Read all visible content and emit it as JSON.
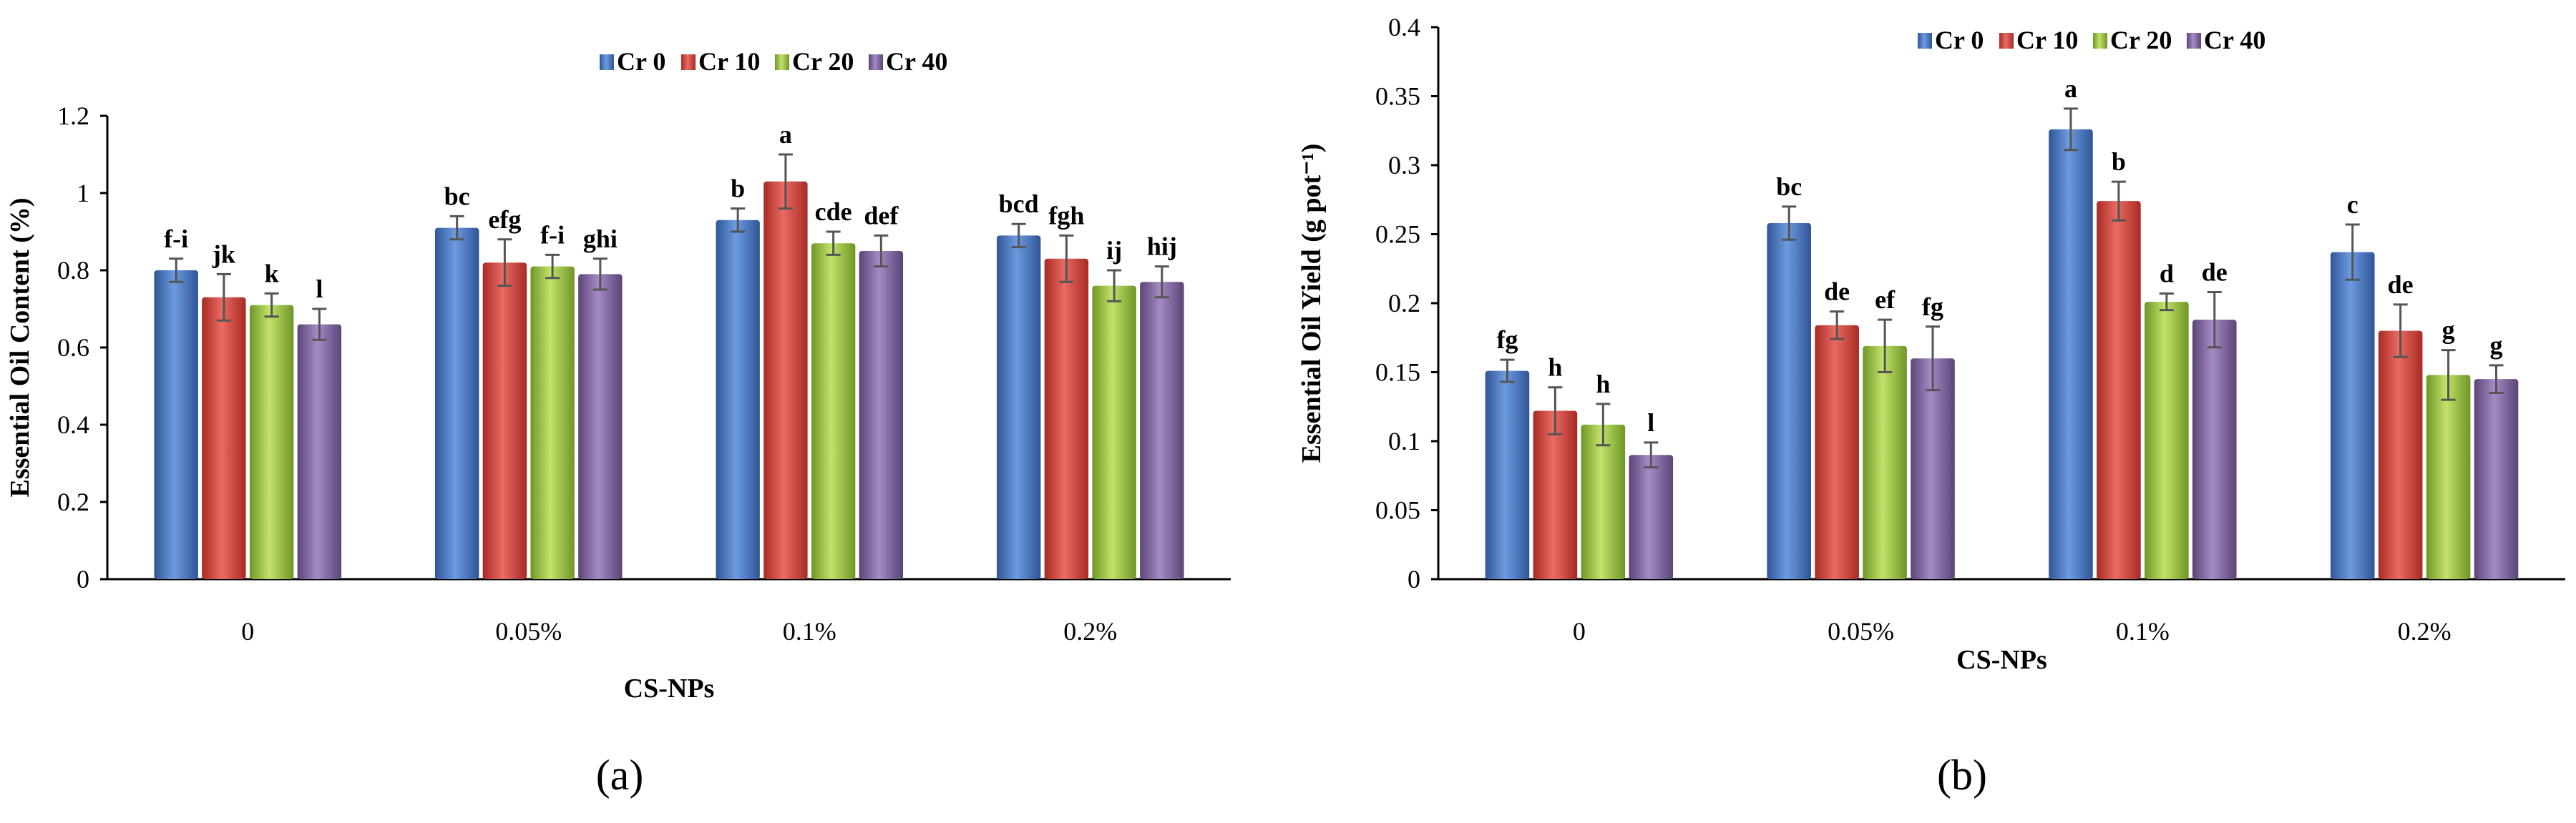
{
  "chart_data": [
    {
      "type": "bar",
      "panel_label": "(a)",
      "xlabel": "CS-NPs",
      "ylabel": "Essential Oil Content (%)",
      "ylim": [
        0,
        1.2
      ],
      "yticks": [
        "0",
        "0.2",
        "0.4",
        "0.6",
        "0.8",
        "1",
        "1.2"
      ],
      "categories": [
        "0",
        "0.05%",
        "0.1%",
        "0.2%"
      ],
      "legend_position": "top-center",
      "series": [
        {
          "name": "Cr 0",
          "color": "#4472C4",
          "values": [
            0.8,
            0.91,
            0.93,
            0.89
          ],
          "errors": [
            0.03,
            0.03,
            0.03,
            0.03
          ],
          "letters": [
            "f-i",
            "bc",
            "b",
            "bcd"
          ]
        },
        {
          "name": "Cr 10",
          "color": "#D9413A",
          "values": [
            0.73,
            0.82,
            1.03,
            0.83
          ],
          "errors": [
            0.06,
            0.06,
            0.07,
            0.06
          ],
          "letters": [
            "jk",
            "efg",
            "a",
            "fgh"
          ]
        },
        {
          "name": "Cr 20",
          "color": "#9BC53D",
          "values": [
            0.71,
            0.81,
            0.87,
            0.76
          ],
          "errors": [
            0.03,
            0.03,
            0.03,
            0.04
          ],
          "letters": [
            "k",
            "f-i",
            "cde",
            "ij"
          ]
        },
        {
          "name": "Cr 40",
          "color": "#8064A2",
          "values": [
            0.66,
            0.79,
            0.85,
            0.77
          ],
          "errors": [
            0.04,
            0.04,
            0.04,
            0.04
          ],
          "letters": [
            "l",
            "ghi",
            "def",
            "hij"
          ]
        }
      ]
    },
    {
      "type": "bar",
      "panel_label": "(b)",
      "xlabel": "CS-NPs",
      "ylabel": "Essential Oil Yield (g pot⁻¹)",
      "ylim": [
        0,
        0.4
      ],
      "yticks": [
        "0",
        "0.05",
        "0.1",
        "0.15",
        "0.2",
        "0.25",
        "0.3",
        "0.35",
        "0.4"
      ],
      "categories": [
        "0",
        "0.05%",
        "0.1%",
        "0.2%"
      ],
      "legend_position": "top-center",
      "series": [
        {
          "name": "Cr 0",
          "color": "#4472C4",
          "values": [
            0.151,
            0.258,
            0.326,
            0.237
          ],
          "errors": [
            0.008,
            0.012,
            0.015,
            0.02
          ],
          "letters": [
            "fg",
            "bc",
            "a",
            "c"
          ]
        },
        {
          "name": "Cr 10",
          "color": "#D9413A",
          "values": [
            0.122,
            0.184,
            0.274,
            0.18
          ],
          "errors": [
            0.017,
            0.01,
            0.014,
            0.019
          ],
          "letters": [
            "h",
            "de",
            "b",
            "de"
          ]
        },
        {
          "name": "Cr 20",
          "color": "#9BC53D",
          "values": [
            0.112,
            0.169,
            0.201,
            0.148
          ],
          "errors": [
            0.015,
            0.019,
            0.006,
            0.018
          ],
          "letters": [
            "h",
            "ef",
            "d",
            "g"
          ]
        },
        {
          "name": "Cr 40",
          "color": "#8064A2",
          "values": [
            0.09,
            0.16,
            0.188,
            0.145
          ],
          "errors": [
            0.009,
            0.023,
            0.02,
            0.01
          ],
          "letters": [
            "l",
            "fg",
            "de",
            "g"
          ]
        }
      ]
    }
  ]
}
